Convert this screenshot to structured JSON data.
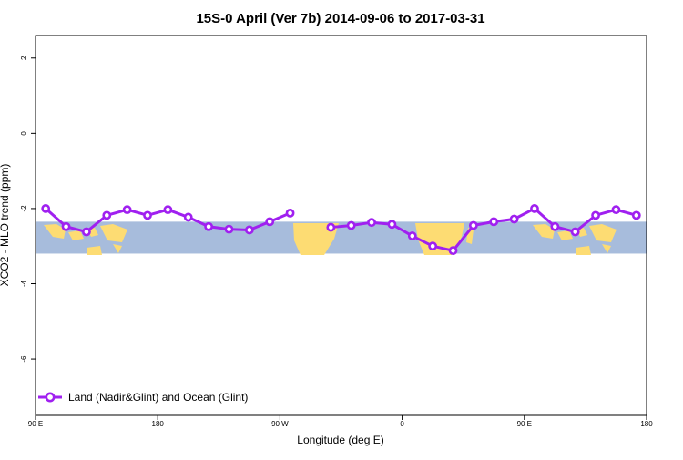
{
  "chart_data": {
    "type": "line",
    "title": "15S-0 April (Ver 7b)   2014-09-06 to 2017-03-31",
    "xlabel": "Longitude (deg E)",
    "ylabel": "XCO2 - MLO trend (ppm)",
    "xlim": [
      90,
      540
    ],
    "ylim": [
      -7.5,
      2.6
    ],
    "x_ticks": [
      {
        "value": 90,
        "label": "90 E"
      },
      {
        "value": 180,
        "label": "180"
      },
      {
        "value": 270,
        "label": "90 W"
      },
      {
        "value": 360,
        "label": "0"
      },
      {
        "value": 450,
        "label": "90 E"
      },
      {
        "value": 540,
        "label": "180"
      }
    ],
    "y_ticks": [
      {
        "value": 2,
        "label": "2"
      },
      {
        "value": 0,
        "label": "0"
      },
      {
        "value": -2,
        "label": "-2"
      },
      {
        "value": -4,
        "label": "-4"
      },
      {
        "value": -6,
        "label": "-6"
      }
    ],
    "grid": false,
    "legend_position": "bottom-left",
    "map_band": {
      "lat_range": "15S-0",
      "ymin": -3.2,
      "ymax": -2.35,
      "ocean_color": "#a7bcdc",
      "land_color": "#fddc73"
    },
    "series": [
      {
        "name": "Land (Nadir&Glint) and Ocean (Glint)",
        "color": "#a020f0",
        "segments": [
          {
            "x": [
              97.5,
              112.5,
              127.5,
              142.5,
              157.5,
              172.5,
              187.5,
              202.5,
              217.5,
              232.5,
              247.5,
              262.5,
              277.5
            ],
            "y": [
              -2.0,
              -2.48,
              -2.62,
              -2.18,
              -2.03,
              -2.18,
              -2.03,
              -2.23,
              -2.48,
              -2.55,
              -2.57,
              -2.35,
              -2.12
            ]
          },
          {
            "x": [
              307.5,
              322.5,
              337.5,
              352.5,
              367.5,
              382.5,
              397.5,
              412.5,
              427.5,
              442.5,
              457.5,
              472.5,
              487.5,
              502.5,
              517.5,
              532.5
            ],
            "y": [
              -2.5,
              -2.45,
              -2.37,
              -2.42,
              -2.73,
              -3.0,
              -3.12,
              -2.45,
              -2.35,
              -2.28,
              -2.0,
              -2.48,
              -2.62,
              -2.18,
              -2.03,
              -2.18
            ]
          }
        ]
      }
    ]
  }
}
